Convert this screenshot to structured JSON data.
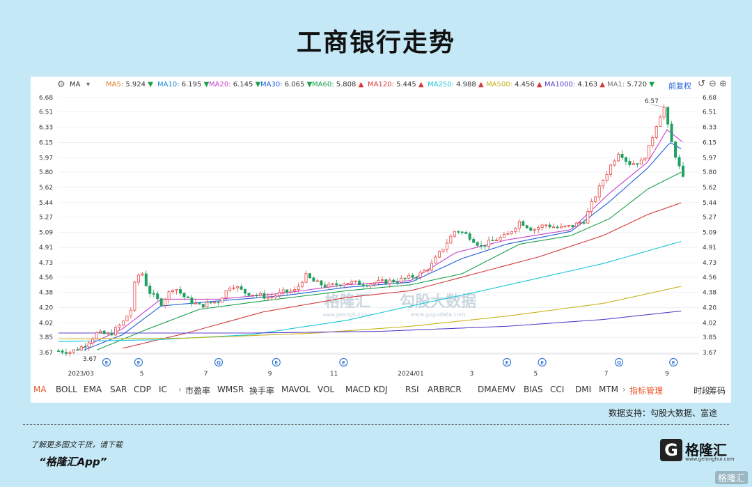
{
  "title": "工商银行走势",
  "toolbar": {
    "ma_label": "MA",
    "items": [
      {
        "label": "MA5:",
        "value": "5.924",
        "arrow": "▼",
        "color": "#e07b1f"
      },
      {
        "label": "MA10:",
        "value": "6.195",
        "arrow": "▼",
        "color": "#1f8ad6"
      },
      {
        "label": "MA20:",
        "value": "6.145",
        "arrow": "▼",
        "color": "#c73fc7"
      },
      {
        "label": "MA30:",
        "value": "6.065",
        "arrow": "▼",
        "color": "#1f5fd6"
      },
      {
        "label": "MA60:",
        "value": "5.808",
        "arrow": "▲",
        "color": "#1aa04a"
      },
      {
        "label": "MA120:",
        "value": "5.445",
        "arrow": "▲",
        "color": "#d43a3a"
      },
      {
        "label": "MA250:",
        "value": "4.988",
        "arrow": "▲",
        "color": "#18c6d8"
      },
      {
        "label": "MA500:",
        "value": "4.456",
        "arrow": "▲",
        "color": "#c9b21a"
      },
      {
        "label": "MA1000:",
        "value": "4.163",
        "arrow": "▲",
        "color": "#5a3fc7"
      },
      {
        "label": "MA1:",
        "value": "5.720",
        "arrow": "▼",
        "color": "#777777"
      }
    ],
    "adjust_label": "前复权"
  },
  "chart_data": {
    "type": "candlestick",
    "y_ticks": [
      "6.68",
      "6.51",
      "6.33",
      "6.15",
      "5.97",
      "5.80",
      "5.62",
      "5.44",
      "5.27",
      "5.09",
      "4.91",
      "4.73",
      "4.56",
      "4.38",
      "4.20",
      "4.02",
      "3.85",
      "3.67"
    ],
    "ylim": [
      3.67,
      6.68
    ],
    "x_tick_labels": [
      "2023/03",
      "5",
      "7",
      "9",
      "11",
      "2024/01",
      "3",
      "5",
      "7",
      "9"
    ],
    "x_tick_frac": [
      0.035,
      0.13,
      0.23,
      0.33,
      0.43,
      0.55,
      0.645,
      0.745,
      0.855,
      0.95
    ],
    "event_markers": [
      {
        "label": "E",
        "frac": 0.075
      },
      {
        "label": "E",
        "frac": 0.125
      },
      {
        "label": "Q",
        "frac": 0.25
      },
      {
        "label": "E",
        "frac": 0.34
      },
      {
        "label": "E",
        "frac": 0.445
      },
      {
        "label": "E",
        "frac": 0.7
      },
      {
        "label": "E",
        "frac": 0.755
      },
      {
        "label": "Q",
        "frac": 0.875
      },
      {
        "label": "E",
        "frac": 0.96
      }
    ],
    "annotations": {
      "high": "6.57",
      "low": "3.67"
    },
    "price_key": [
      [
        0,
        3.69
      ],
      [
        0.02,
        3.68
      ],
      [
        0.04,
        3.75
      ],
      [
        0.06,
        3.9
      ],
      [
        0.08,
        3.88
      ],
      [
        0.1,
        4.02
      ],
      [
        0.115,
        4.2
      ],
      [
        0.12,
        4.55
      ],
      [
        0.13,
        4.62
      ],
      [
        0.14,
        4.4
      ],
      [
        0.16,
        4.25
      ],
      [
        0.18,
        4.45
      ],
      [
        0.2,
        4.3
      ],
      [
        0.22,
        4.22
      ],
      [
        0.25,
        4.28
      ],
      [
        0.27,
        4.48
      ],
      [
        0.29,
        4.38
      ],
      [
        0.31,
        4.35
      ],
      [
        0.33,
        4.32
      ],
      [
        0.35,
        4.38
      ],
      [
        0.37,
        4.4
      ],
      [
        0.385,
        4.58
      ],
      [
        0.4,
        4.5
      ],
      [
        0.42,
        4.45
      ],
      [
        0.45,
        4.5
      ],
      [
        0.48,
        4.48
      ],
      [
        0.5,
        4.5
      ],
      [
        0.53,
        4.52
      ],
      [
        0.56,
        4.58
      ],
      [
        0.58,
        4.68
      ],
      [
        0.6,
        4.9
      ],
      [
        0.62,
        5.12
      ],
      [
        0.64,
        5.05
      ],
      [
        0.66,
        4.92
      ],
      [
        0.68,
        5.0
      ],
      [
        0.7,
        5.05
      ],
      [
        0.72,
        5.22
      ],
      [
        0.74,
        5.12
      ],
      [
        0.76,
        5.18
      ],
      [
        0.78,
        5.14
      ],
      [
        0.8,
        5.16
      ],
      [
        0.82,
        5.22
      ],
      [
        0.84,
        5.55
      ],
      [
        0.86,
        5.85
      ],
      [
        0.875,
        6.05
      ],
      [
        0.89,
        5.9
      ],
      [
        0.91,
        5.92
      ],
      [
        0.92,
        6.05
      ],
      [
        0.935,
        6.4
      ],
      [
        0.945,
        6.57
      ],
      [
        0.955,
        6.2
      ],
      [
        0.965,
        5.95
      ],
      [
        0.975,
        5.72
      ]
    ],
    "ma_series": [
      {
        "name": "MA20",
        "color": "#c73fc7",
        "key": [
          [
            0.03,
            3.7
          ],
          [
            0.1,
            3.95
          ],
          [
            0.16,
            4.3
          ],
          [
            0.25,
            4.3
          ],
          [
            0.35,
            4.37
          ],
          [
            0.45,
            4.47
          ],
          [
            0.55,
            4.52
          ],
          [
            0.62,
            4.85
          ],
          [
            0.7,
            5.0
          ],
          [
            0.8,
            5.12
          ],
          [
            0.86,
            5.55
          ],
          [
            0.92,
            5.92
          ],
          [
            0.95,
            6.3
          ],
          [
            0.975,
            6.15
          ]
        ]
      },
      {
        "name": "MA30",
        "color": "#1f5fd6",
        "key": [
          [
            0.04,
            3.7
          ],
          [
            0.1,
            3.88
          ],
          [
            0.16,
            4.22
          ],
          [
            0.25,
            4.28
          ],
          [
            0.35,
            4.34
          ],
          [
            0.45,
            4.44
          ],
          [
            0.55,
            4.5
          ],
          [
            0.63,
            4.78
          ],
          [
            0.7,
            4.95
          ],
          [
            0.8,
            5.1
          ],
          [
            0.86,
            5.45
          ],
          [
            0.92,
            5.85
          ],
          [
            0.955,
            6.15
          ],
          [
            0.975,
            6.06
          ]
        ]
      },
      {
        "name": "MA60",
        "color": "#1aa04a",
        "key": [
          [
            0.06,
            3.7
          ],
          [
            0.14,
            3.95
          ],
          [
            0.22,
            4.18
          ],
          [
            0.32,
            4.28
          ],
          [
            0.45,
            4.4
          ],
          [
            0.55,
            4.47
          ],
          [
            0.63,
            4.6
          ],
          [
            0.72,
            4.95
          ],
          [
            0.8,
            5.05
          ],
          [
            0.86,
            5.25
          ],
          [
            0.92,
            5.6
          ],
          [
            0.975,
            5.81
          ]
        ]
      },
      {
        "name": "MA120",
        "color": "#d43a3a",
        "key": [
          [
            0.1,
            3.72
          ],
          [
            0.2,
            3.9
          ],
          [
            0.32,
            4.15
          ],
          [
            0.45,
            4.32
          ],
          [
            0.55,
            4.4
          ],
          [
            0.65,
            4.6
          ],
          [
            0.75,
            4.8
          ],
          [
            0.85,
            5.05
          ],
          [
            0.92,
            5.3
          ],
          [
            0.975,
            5.445
          ]
        ]
      },
      {
        "name": "MA250",
        "color": "#18c6d8",
        "key": [
          [
            0.0,
            3.8
          ],
          [
            0.15,
            3.82
          ],
          [
            0.3,
            3.88
          ],
          [
            0.45,
            4.05
          ],
          [
            0.55,
            4.22
          ],
          [
            0.65,
            4.38
          ],
          [
            0.75,
            4.55
          ],
          [
            0.85,
            4.72
          ],
          [
            0.975,
            4.988
          ]
        ]
      },
      {
        "name": "MA500",
        "color": "#c9b21a",
        "key": [
          [
            0.0,
            3.83
          ],
          [
            0.2,
            3.84
          ],
          [
            0.4,
            3.9
          ],
          [
            0.55,
            3.98
          ],
          [
            0.7,
            4.1
          ],
          [
            0.85,
            4.25
          ],
          [
            0.975,
            4.456
          ]
        ]
      },
      {
        "name": "MA1000",
        "color": "#5a3fc7",
        "key": [
          [
            0.0,
            3.9
          ],
          [
            0.3,
            3.9
          ],
          [
            0.5,
            3.92
          ],
          [
            0.7,
            3.98
          ],
          [
            0.85,
            4.06
          ],
          [
            0.975,
            4.163
          ]
        ]
      }
    ]
  },
  "chart_watermark": {
    "brand": "格隆汇",
    "url": "www.gelonghui.com",
    "partner": "勾股大数据",
    "partner_url": "www.gogudata.com"
  },
  "indicators": [
    "MA",
    "BOLL",
    "EMA",
    "SAR",
    "CDP",
    "IC",
    "›",
    "市盈率",
    "WMSR",
    "换手率",
    "MAVOL",
    "VOL",
    "MACD",
    "KDJ",
    "RSI",
    "ARBR",
    "CR",
    "DMA",
    "EMV",
    "BIAS",
    "CCI",
    "DMI",
    "MTM",
    "›",
    "指标管理",
    "时段",
    "筹码"
  ],
  "source": "数据支持：勾股大数据、富途",
  "promo": {
    "line1": "了解更多图文干货，请下载",
    "line2": "“格隆汇App”"
  },
  "logo": {
    "mark": "G",
    "name": "格隆汇",
    "url": "www.gelonghui.com"
  },
  "corner_watermark": "格隆汇"
}
